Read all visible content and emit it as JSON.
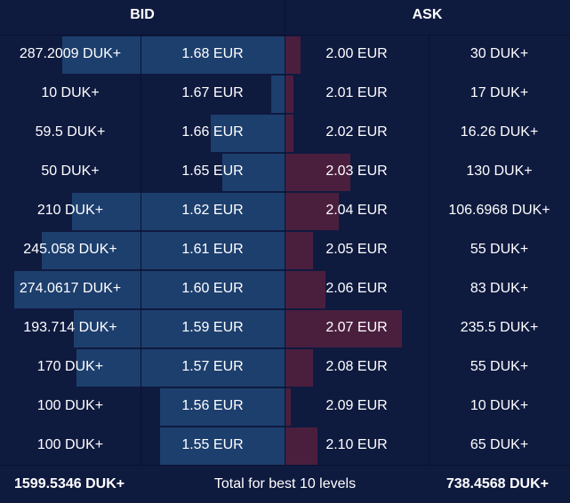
{
  "header": {
    "bid_label": "BID",
    "ask_label": "ASK"
  },
  "rows": [
    {
      "bid_amount": "287.2009 DUK+",
      "bid_price": "1.68 EUR",
      "ask_price": "2.00 EUR",
      "ask_amount": "30 DUK+",
      "bid_fill": 0.78,
      "ask_fill": 0.055
    },
    {
      "bid_amount": "10 DUK+",
      "bid_price": "1.67 EUR",
      "ask_price": "2.01 EUR",
      "ask_amount": "17 DUK+",
      "bid_fill": 0.047,
      "ask_fill": 0.031
    },
    {
      "bid_amount": "59.5 DUK+",
      "bid_price": "1.66 EUR",
      "ask_price": "2.02 EUR",
      "ask_amount": "16.26 DUK+",
      "bid_fill": 0.259,
      "ask_fill": 0.031
    },
    {
      "bid_amount": "50 DUK+",
      "bid_price": "1.65 EUR",
      "ask_price": "2.03 EUR",
      "ask_amount": "130 DUK+",
      "bid_fill": 0.219,
      "ask_fill": 0.231
    },
    {
      "bid_amount": "210 DUK+",
      "bid_price": "1.62 EUR",
      "ask_price": "2.04 EUR",
      "ask_amount": "106.6968 DUK+",
      "bid_fill": 0.747,
      "ask_fill": 0.19
    },
    {
      "bid_amount": "245.058 DUK+",
      "bid_price": "1.61 EUR",
      "ask_price": "2.05 EUR",
      "ask_amount": "55 DUK+",
      "bid_fill": 0.853,
      "ask_fill": 0.099
    },
    {
      "bid_amount": "274.0617 DUK+",
      "bid_price": "1.60 EUR",
      "ask_price": "2.06 EUR",
      "ask_amount": "83 DUK+",
      "bid_fill": 0.95,
      "ask_fill": 0.145
    },
    {
      "bid_amount": "193.714 DUK+",
      "bid_price": "1.59 EUR",
      "ask_price": "2.07 EUR",
      "ask_amount": "235.5 DUK+",
      "bid_fill": 0.741,
      "ask_fill": 0.413
    },
    {
      "bid_amount": "170 DUK+",
      "bid_price": "1.57 EUR",
      "ask_price": "2.08 EUR",
      "ask_amount": "55 DUK+",
      "bid_fill": 0.731,
      "ask_fill": 0.099
    },
    {
      "bid_amount": "100 DUK+",
      "bid_price": "1.56 EUR",
      "ask_price": "2.09 EUR",
      "ask_amount": "10 DUK+",
      "bid_fill": 0.437,
      "ask_fill": 0.022
    },
    {
      "bid_amount": "100 DUK+",
      "bid_price": "1.55 EUR",
      "ask_price": "2.10 EUR",
      "ask_amount": "65 DUK+",
      "bid_fill": 0.437,
      "ask_fill": 0.115
    }
  ],
  "footer": {
    "bid_total": "1599.5346 DUK+",
    "label": "Total for best 10 levels",
    "ask_total": "738.4568 DUK+"
  },
  "colors": {
    "background": "#0f1a3f",
    "bid_bar": "#1d3f6e",
    "ask_bar": "#4a1f3e",
    "divider": "#0a1230"
  }
}
